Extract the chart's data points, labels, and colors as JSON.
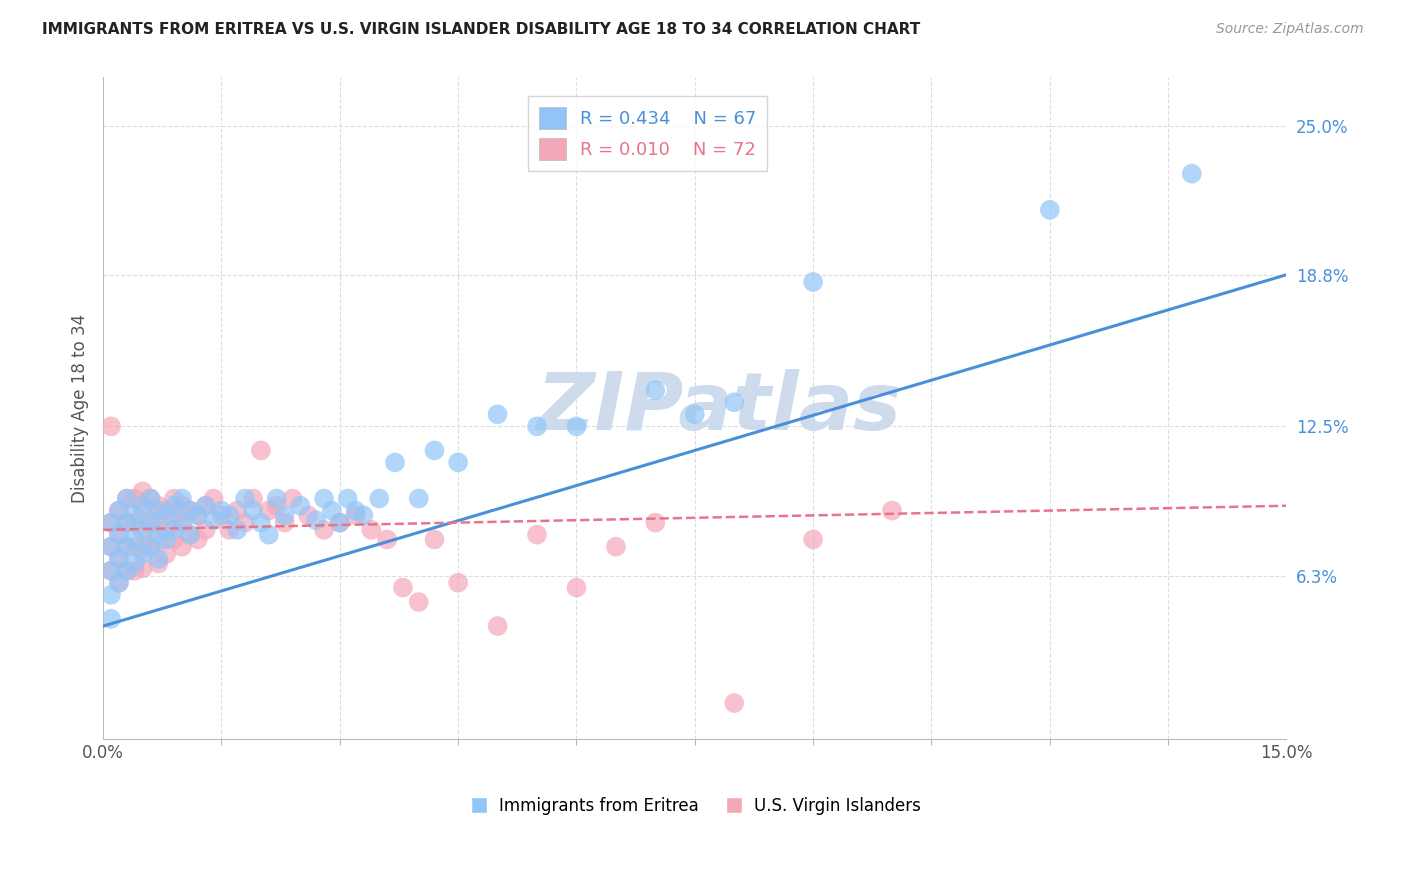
{
  "title": "IMMIGRANTS FROM ERITREA VS U.S. VIRGIN ISLANDER DISABILITY AGE 18 TO 34 CORRELATION CHART",
  "source": "Source: ZipAtlas.com",
  "ylabel": "Disability Age 18 to 34",
  "xlim": [
    0.0,
    0.15
  ],
  "ylim": [
    -0.005,
    0.27
  ],
  "xtick_labels_ends": [
    "0.0%",
    "15.0%"
  ],
  "xtick_vals_ends": [
    0.0,
    0.15
  ],
  "xtick_minor_vals": [
    0.015,
    0.03,
    0.045,
    0.06,
    0.075,
    0.09,
    0.105,
    0.12,
    0.135
  ],
  "right_ytick_labels": [
    "6.3%",
    "12.5%",
    "18.8%",
    "25.0%"
  ],
  "right_ytick_vals": [
    0.063,
    0.125,
    0.188,
    0.25
  ],
  "blue_R": "0.434",
  "blue_N": "67",
  "pink_R": "0.010",
  "pink_N": "72",
  "blue_color": "#92C5F7",
  "pink_color": "#F4A7B9",
  "blue_line_color": "#4A90D9",
  "pink_line_color": "#E8748A",
  "watermark": "ZIPatlas",
  "watermark_color": "#C8D8EC",
  "background_color": "#FFFFFF",
  "grid_color": "#DCDCE8",
  "blue_scatter_x": [
    0.001,
    0.001,
    0.001,
    0.001,
    0.001,
    0.002,
    0.002,
    0.002,
    0.002,
    0.003,
    0.003,
    0.003,
    0.003,
    0.004,
    0.004,
    0.004,
    0.005,
    0.005,
    0.005,
    0.006,
    0.006,
    0.006,
    0.007,
    0.007,
    0.007,
    0.008,
    0.008,
    0.009,
    0.009,
    0.01,
    0.01,
    0.011,
    0.011,
    0.012,
    0.013,
    0.014,
    0.015,
    0.016,
    0.017,
    0.018,
    0.019,
    0.02,
    0.021,
    0.022,
    0.023,
    0.025,
    0.027,
    0.028,
    0.029,
    0.03,
    0.031,
    0.032,
    0.033,
    0.035,
    0.037,
    0.04,
    0.042,
    0.045,
    0.05,
    0.055,
    0.06,
    0.07,
    0.075,
    0.08,
    0.09,
    0.12,
    0.138
  ],
  "blue_scatter_y": [
    0.085,
    0.075,
    0.065,
    0.055,
    0.045,
    0.09,
    0.08,
    0.07,
    0.06,
    0.095,
    0.085,
    0.075,
    0.065,
    0.088,
    0.078,
    0.068,
    0.092,
    0.082,
    0.072,
    0.095,
    0.085,
    0.075,
    0.09,
    0.08,
    0.07,
    0.088,
    0.078,
    0.092,
    0.082,
    0.095,
    0.085,
    0.09,
    0.08,
    0.088,
    0.092,
    0.086,
    0.09,
    0.088,
    0.082,
    0.095,
    0.09,
    0.085,
    0.08,
    0.095,
    0.088,
    0.092,
    0.086,
    0.095,
    0.09,
    0.085,
    0.095,
    0.09,
    0.088,
    0.095,
    0.11,
    0.095,
    0.115,
    0.11,
    0.13,
    0.125,
    0.125,
    0.14,
    0.13,
    0.135,
    0.185,
    0.215,
    0.23
  ],
  "pink_scatter_x": [
    0.001,
    0.001,
    0.001,
    0.001,
    0.002,
    0.002,
    0.002,
    0.002,
    0.003,
    0.003,
    0.003,
    0.003,
    0.004,
    0.004,
    0.004,
    0.004,
    0.005,
    0.005,
    0.005,
    0.005,
    0.005,
    0.006,
    0.006,
    0.006,
    0.007,
    0.007,
    0.007,
    0.007,
    0.008,
    0.008,
    0.008,
    0.009,
    0.009,
    0.009,
    0.01,
    0.01,
    0.01,
    0.011,
    0.011,
    0.012,
    0.012,
    0.013,
    0.013,
    0.014,
    0.015,
    0.016,
    0.017,
    0.018,
    0.019,
    0.02,
    0.021,
    0.022,
    0.023,
    0.024,
    0.026,
    0.028,
    0.03,
    0.032,
    0.034,
    0.036,
    0.038,
    0.04,
    0.042,
    0.045,
    0.05,
    0.055,
    0.06,
    0.065,
    0.07,
    0.08,
    0.09,
    0.1
  ],
  "pink_scatter_y": [
    0.085,
    0.075,
    0.065,
    0.125,
    0.09,
    0.08,
    0.07,
    0.06,
    0.095,
    0.085,
    0.075,
    0.065,
    0.095,
    0.085,
    0.075,
    0.065,
    0.098,
    0.09,
    0.082,
    0.074,
    0.066,
    0.095,
    0.085,
    0.075,
    0.092,
    0.085,
    0.078,
    0.068,
    0.09,
    0.082,
    0.072,
    0.095,
    0.088,
    0.078,
    0.092,
    0.085,
    0.075,
    0.09,
    0.08,
    0.088,
    0.078,
    0.092,
    0.082,
    0.095,
    0.088,
    0.082,
    0.09,
    0.085,
    0.095,
    0.115,
    0.09,
    0.092,
    0.085,
    0.095,
    0.088,
    0.082,
    0.085,
    0.088,
    0.082,
    0.078,
    0.058,
    0.052,
    0.078,
    0.06,
    0.042,
    0.08,
    0.058,
    0.075,
    0.085,
    0.01,
    0.078,
    0.09
  ],
  "blue_line_x": [
    0.0,
    0.15
  ],
  "blue_line_y": [
    0.042,
    0.188
  ],
  "pink_line_x": [
    0.0,
    0.15
  ],
  "pink_line_y": [
    0.082,
    0.092
  ]
}
